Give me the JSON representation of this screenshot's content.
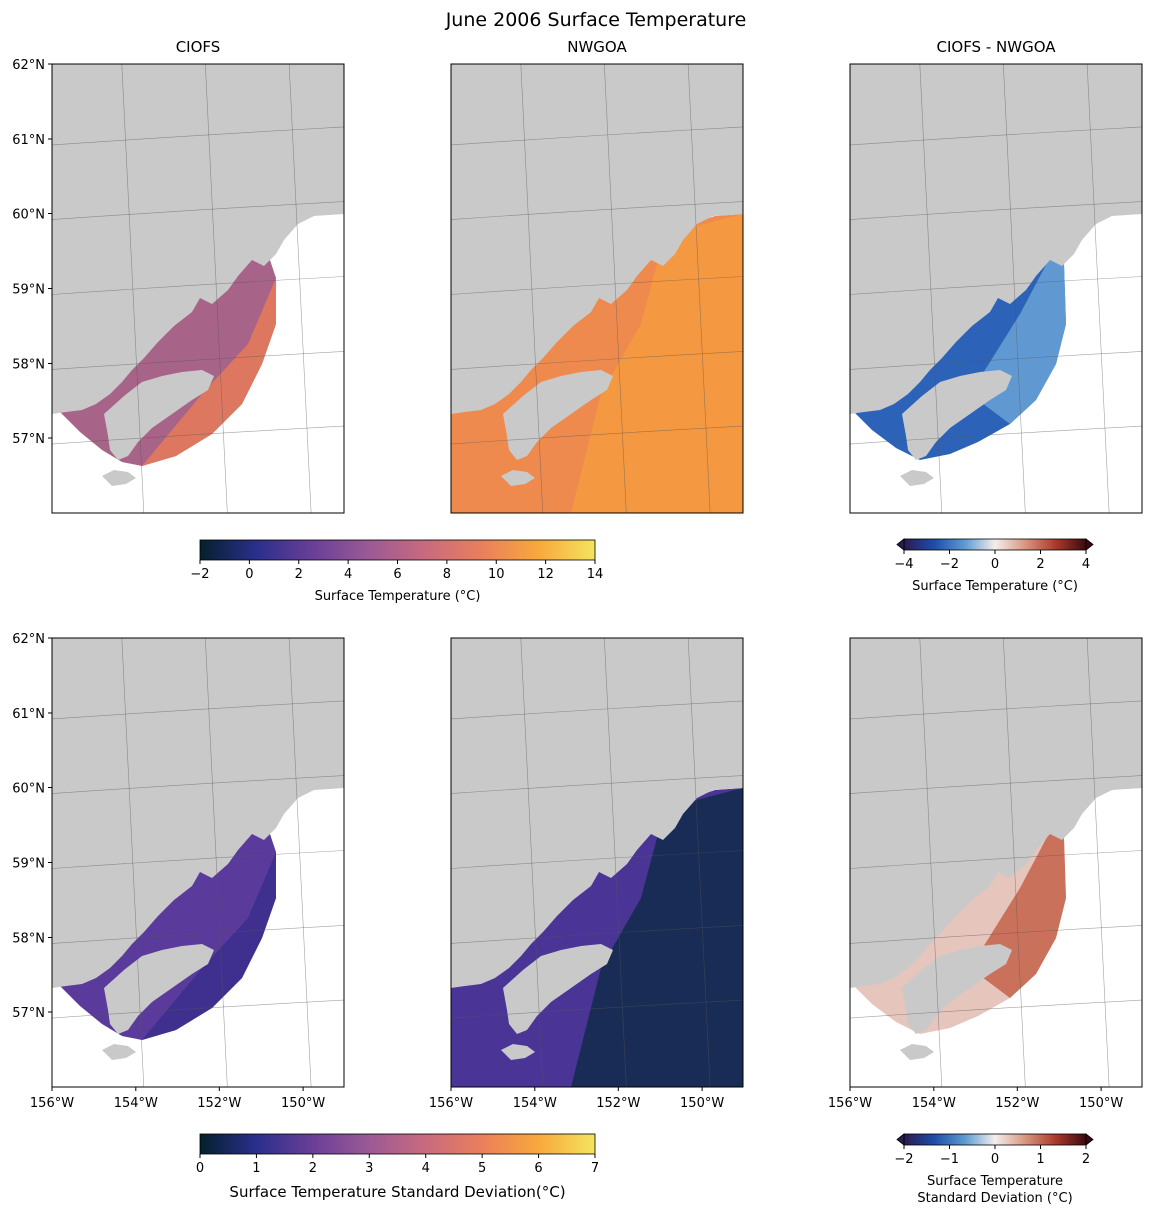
{
  "figure": {
    "title": "June 2006 Surface Temperature",
    "colors": {
      "land": "#c9c9c9",
      "water_bg": "#ffffff",
      "grid": "#555555",
      "thermal": [
        "#04202c",
        "#2a2f8c",
        "#6a3f98",
        "#9b5a95",
        "#c96a7e",
        "#ea7f5c",
        "#f8a83c",
        "#f4e45e"
      ],
      "diverging": [
        "#2a1a4e",
        "#1e4ea8",
        "#5d9ad0",
        "#f3eeec",
        "#d89680",
        "#a93a2a",
        "#3c0a10"
      ]
    }
  },
  "chart_data": [
    {
      "type": "heatmap",
      "title": "CIOFS",
      "lat_ticks": [
        "62°N",
        "61°N",
        "60°N",
        "59°N",
        "58°N",
        "57°N"
      ],
      "lon_ticks": [],
      "field": "thermal",
      "fill": "#a76488",
      "fill_outer": "#e87a58"
    },
    {
      "type": "heatmap",
      "title": "NWGOA",
      "lat_ticks": [],
      "lon_ticks": [],
      "field": "thermal",
      "fill": "#ef8a4e",
      "fill_outer": "#f59a40"
    },
    {
      "type": "heatmap",
      "title": "CIOFS - NWGOA",
      "lat_ticks": [],
      "lon_ticks": [],
      "field": "diverging",
      "fill": "#2c63b8",
      "fill_outer": "#6aa2d6"
    },
    {
      "type": "heatmap",
      "title": "",
      "lat_ticks": [
        "62°N",
        "61°N",
        "60°N",
        "59°N",
        "58°N",
        "57°N"
      ],
      "lon_ticks": [
        "156°W",
        "154°W",
        "152°W",
        "150°W"
      ],
      "field": "thermal",
      "fill": "#5a3b9c",
      "fill_outer": "#3b2f8e"
    },
    {
      "type": "heatmap",
      "title": "",
      "lat_ticks": [],
      "lon_ticks": [
        "156°W",
        "154°W",
        "152°W",
        "150°W"
      ],
      "field": "thermal",
      "fill": "#4a3596",
      "fill_outer": "#102a4a"
    },
    {
      "type": "heatmap",
      "title": "",
      "lat_ticks": [],
      "lon_ticks": [
        "156°W",
        "154°W",
        "152°W",
        "150°W"
      ],
      "field": "diverging",
      "fill": "#e6c6bc",
      "fill_outer": "#c4614a"
    }
  ],
  "colorbars": [
    {
      "label": "Surface Temperature (°C)",
      "ticks": [
        "−2",
        "0",
        "2",
        "4",
        "6",
        "8",
        "10",
        "12",
        "14"
      ],
      "vmin": -2,
      "vmax": 14,
      "values": [
        -2,
        0,
        2,
        4,
        6,
        8,
        10,
        12,
        14
      ],
      "cmap": "thermal",
      "extend": false,
      "label_lines": []
    },
    {
      "label": "Surface Temperature (°C)",
      "ticks": [
        "−4",
        "−2",
        "0",
        "2",
        "4"
      ],
      "vmin": -4,
      "vmax": 4,
      "values": [
        -4,
        -2,
        0,
        2,
        4
      ],
      "cmap": "diverging",
      "extend": true,
      "label_lines": []
    },
    {
      "label": "Surface Temperature Standard Deviation(°C)",
      "ticks": [
        "0",
        "1",
        "2",
        "3",
        "4",
        "5",
        "6",
        "7"
      ],
      "vmin": 0,
      "vmax": 7,
      "values": [
        0,
        1,
        2,
        3,
        4,
        5,
        6,
        7
      ],
      "cmap": "thermal",
      "extend": false,
      "label_lines": []
    },
    {
      "label": "",
      "ticks": [
        "−2",
        "−1",
        "0",
        "1",
        "2"
      ],
      "vmin": -2,
      "vmax": 2,
      "values": [
        -2,
        -1,
        0,
        1,
        2
      ],
      "cmap": "diverging",
      "extend": true,
      "label_lines": [
        "Surface Temperature",
        "Standard Deviation (°C)"
      ]
    }
  ]
}
